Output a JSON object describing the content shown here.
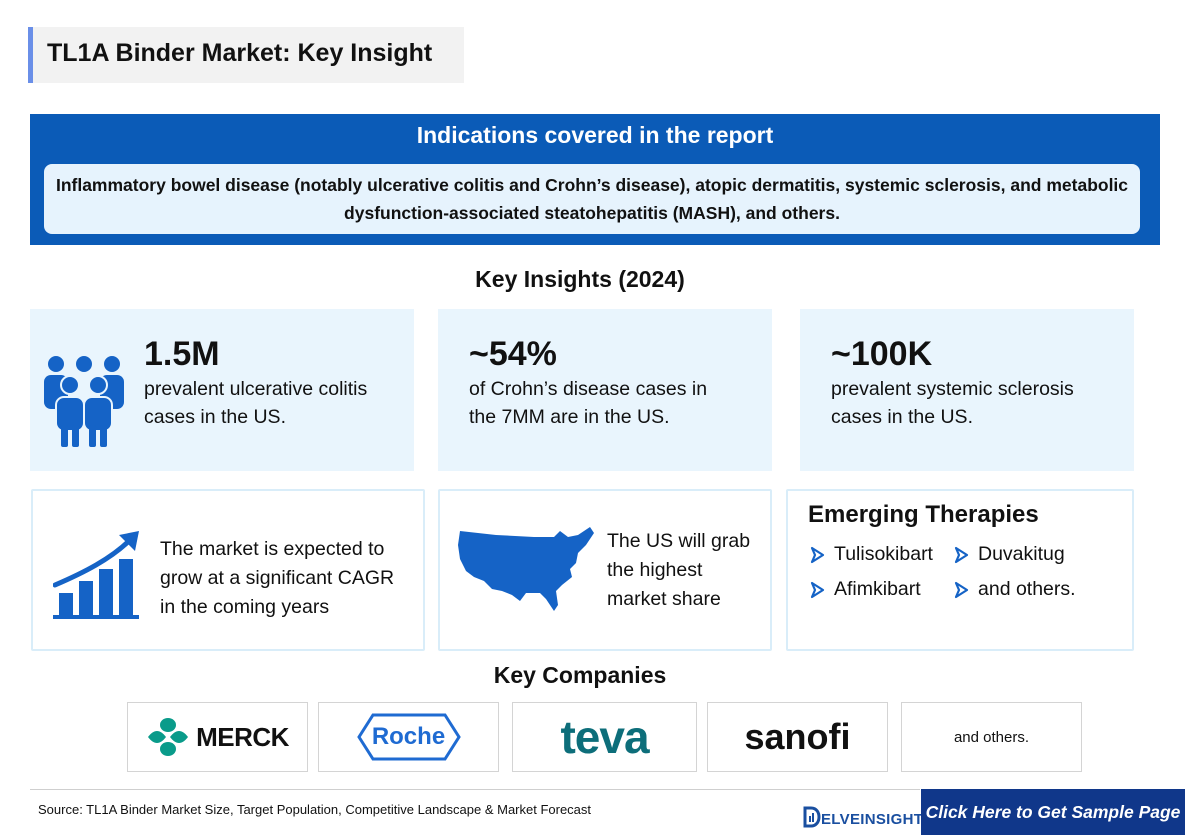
{
  "title": "TL1A Binder Market: Key Insight",
  "indications": {
    "heading": "Indications covered in the report",
    "text": "Inflammatory bowel disease (notably ulcerative colitis and Crohn’s disease), atopic dermatitis, systemic sclerosis, and metabolic dysfunction-associated steatohepatitis (MASH), and others."
  },
  "key_insights_heading": "Key Insights (2024)",
  "stats": [
    {
      "value": "1.5M",
      "line1": "prevalent ulcerative colitis",
      "line2": "cases in the US."
    },
    {
      "value": "~54%",
      "line1": "of Crohn’s disease cases in",
      "line2": "the 7MM are in the US."
    },
    {
      "value": "~100K",
      "line1": "prevalent systemic sclerosis",
      "line2": "cases in the US."
    }
  ],
  "market_growth": {
    "lines": [
      "The market is expected to",
      "grow at a significant CAGR",
      "in the coming years"
    ],
    "icon": "growth-chart-icon"
  },
  "us_share": {
    "lines": [
      "The US will grab",
      "the highest",
      "market share"
    ],
    "icon": "us-map-icon"
  },
  "emerging_therapies": {
    "title": "Emerging Therapies",
    "items": [
      "Tulisokibart",
      "Duvakitug",
      "Afimkibart",
      "and others."
    ]
  },
  "key_companies": {
    "heading": "Key Companies",
    "logos": [
      "MERCK",
      "Roche",
      "teva",
      "sanofi"
    ],
    "others": "and others."
  },
  "footer": {
    "source": "Source: TL1A Binder Market Size, Target Population, Competitive Landscape & Market Forecast",
    "brand": "ELVEINSIGHT",
    "cta": "Click Here to Get Sample Page"
  },
  "colors": {
    "primary_blue": "#0b5bb7",
    "dark_navy": "#10378a",
    "light_panel": "#e9f5fd",
    "merck_teal": "#0a9b8a"
  }
}
